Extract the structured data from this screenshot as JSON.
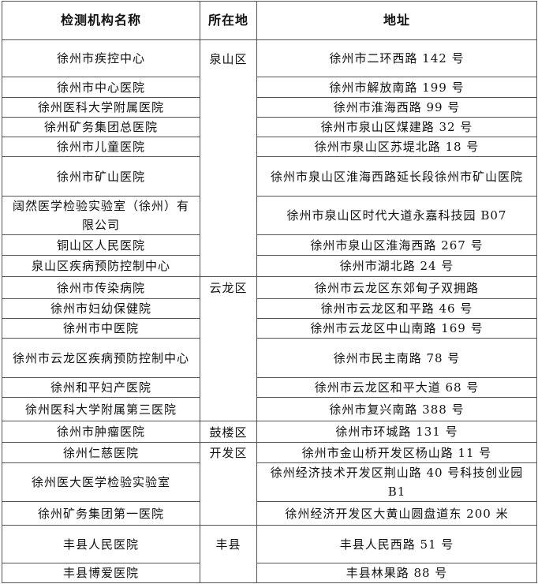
{
  "table": {
    "header": [
      "检测机构名称",
      "所在地",
      "地址"
    ],
    "rows": [
      {
        "name": "徐州市疾控中心",
        "district": "泉山区",
        "address": "徐州市二环西路 142 号"
      },
      {
        "name": "徐州市中心医院",
        "address": "徐州市解放南路 199 号"
      },
      {
        "name": "徐州医科大学附属医院",
        "address": "徐州市淮海西路 99 号"
      },
      {
        "name": "徐州矿务集团总医院",
        "address": "徐州市泉山区煤建路 32 号"
      },
      {
        "name": "徐州市儿童医院",
        "address": "徐州市泉山区苏堤北路 18 号"
      },
      {
        "name": "徐州市矿山医院",
        "address": "徐州市泉山区淮海西路延长段徐州市矿山医院"
      },
      {
        "name": "阔然医学检验实验室（徐州）有限公司",
        "address": "徐州市泉山区时代大道永嘉科技园 B07"
      },
      {
        "name": "铜山区人民医院",
        "address": "徐州市泉山区淮海西路 267 号"
      },
      {
        "name": "泉山区疾病预防控制中心",
        "address": "徐州市湖北路 24 号"
      },
      {
        "name": "徐州市传染病院",
        "district": "云龙区",
        "address": "徐州市云龙区东郊甸子双拥路"
      },
      {
        "name": "徐州市妇幼保健院",
        "address": "徐州市云龙区和平路 46 号"
      },
      {
        "name": "徐州市中医院",
        "address": "徐州市云龙区中山南路 169 号"
      },
      {
        "name": "徐州市云龙区疾病预防控制中心",
        "address": "徐州市民主南路 78 号"
      },
      {
        "name": "徐州和平妇产医院",
        "address": "徐州市云龙区和平大道 68 号"
      },
      {
        "name": "徐州医科大学附属第三医院",
        "address": "徐州市复兴南路 388 号"
      },
      {
        "name": "徐州市肿瘤医院",
        "district": "鼓楼区",
        "address": "徐州市环城路 131 号"
      },
      {
        "name": "徐州仁慈医院",
        "district": "开发区",
        "address": "徐州市金山桥开发区杨山路 11 号"
      },
      {
        "name": "徐州医大医学检验实验室",
        "address": "徐州经济技术开发区荆山路 40 号科技创业园 B1"
      },
      {
        "name": "徐州矿务集团第一医院",
        "address": "徐州经济开发区大黄山圆盘道东 200 米"
      },
      {
        "name": "丰县人民医院",
        "district": "丰县",
        "address": "丰县人民西路 51 号"
      },
      {
        "name": "丰县博爱医院",
        "address": "丰县林果路 88 号"
      }
    ]
  }
}
